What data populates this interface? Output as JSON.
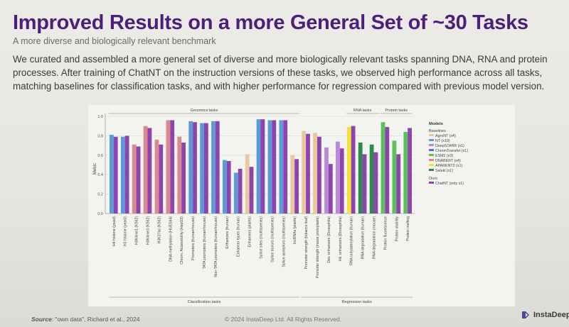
{
  "slide": {
    "title": "Improved Results on a more General Set of ~30 Tasks",
    "subtitle": "A more diverse and biologically relevant benchmark",
    "paragraph": "We curated and assembled a more general set of diverse and more biologically relevant tasks spanning DNA, RNA and protein processes. After training of ChatNT on the instruction versions of these tasks, we observed high performance across all tasks, matching baselines for classification tasks, and with higher performance for regression compared with previous model version.",
    "source_label": "Source",
    "source_text": ": \"own data\", Richard et al., 2024",
    "copyright": "© 2024 InstaDeep Ltd. All Rights Reserved.",
    "logo": "InstaDeep™"
  },
  "colors": {
    "title": "#4b1f7a",
    "AgroNT (x4)": "#e8c99b",
    "NT (x10)": "#5b9bd5",
    "DeepSTARR (x1)": "#b98bd6",
    "ChromTransfer (x1)": "#5c6bd8",
    "ESM2 (x3)": "#5cc15c",
    "DNABERT (x4)": "#d98a8a",
    "APARENT2 (x1)": "#f2e33b",
    "Saluki (x1)": "#2f8a4f",
    "ChatNT (only x1)": "#8e44ad"
  },
  "chart_data": {
    "type": "bar",
    "ylabel": "Metric",
    "ylim": [
      0,
      1.0
    ],
    "yticks": [
      "0.0",
      "0.2",
      "0.4",
      "0.6",
      "0.8",
      "1.0"
    ],
    "group_labels": {
      "top": [
        "Genomics tasks",
        "RNA tasks",
        "Protein tasks"
      ],
      "bottom": [
        "Classification tasks",
        "Regression tasks"
      ]
    },
    "legend": {
      "title": "Models",
      "baselines_label": "Baselines",
      "baselines": [
        "AgroNT (x4)",
        "NT (x10)",
        "DeepSTARR (x1)",
        "ChromTransfer (x1)",
        "ESM2 (x3)",
        "DNABERT (x4)",
        "APARENT2 (x1)",
        "Saluki (x1)"
      ],
      "ours_label": "Ours",
      "ours": [
        "ChatNT (only x1)"
      ],
      "placement": "right"
    },
    "tasks": [
      {
        "label": "H4 histone (yeast)",
        "baseline": "NT (x10)",
        "baseline_value": 0.81,
        "chatnt": 0.79
      },
      {
        "label": "H3 histone (yeast)",
        "baseline": "NT (x10)",
        "baseline_value": 0.79,
        "chatnt": 0.8
      },
      {
        "label": "H3K4me1 (K562)",
        "baseline": "DNABERT (x4)",
        "baseline_value": 0.71,
        "chatnt": 0.69
      },
      {
        "label": "H3K4me3 (K562)",
        "baseline": "DNABERT (x4)",
        "baseline_value": 0.9,
        "chatnt": 0.88
      },
      {
        "label": "H3K27ac (K562)",
        "baseline": "DNABERT (x4)",
        "baseline_value": 0.76,
        "chatnt": 0.71
      },
      {
        "label": "DNA methylation (HUES64)",
        "baseline": "DNABERT (x4)",
        "baseline_value": 0.96,
        "chatnt": 0.96
      },
      {
        "label": "Chrom. Accessibility (HepG2)",
        "baseline": "DNABERT (x4)",
        "baseline_value": 0.79,
        "chatnt": 0.73
      },
      {
        "label": "Promoters (human/mouse)",
        "baseline": "NT (x10)",
        "baseline_value": 0.95,
        "chatnt": 0.94
      },
      {
        "label": "TATA promoters (human/mouse)",
        "baseline": "NT (x10)",
        "baseline_value": 0.93,
        "chatnt": 0.93
      },
      {
        "label": "Non-TATA promoters (human/mouse)",
        "baseline": "NT (x10)",
        "baseline_value": 0.95,
        "chatnt": 0.95
      },
      {
        "label": "Enhancers (human)",
        "baseline": "NT (x10)",
        "baseline_value": 0.55,
        "chatnt": 0.54
      },
      {
        "label": "Enhancer types (human)",
        "baseline": "NT (x10)",
        "baseline_value": 0.42,
        "chatnt": 0.46
      },
      {
        "label": "Enhancers (plants)",
        "baseline": "AgroNT (x4)",
        "baseline_value": 0.61,
        "chatnt": 0.48
      },
      {
        "label": "Splice sites (multispecies)",
        "baseline": "NT (x10)",
        "baseline_value": 0.97,
        "chatnt": 0.97
      },
      {
        "label": "Splice donors (multispecies)",
        "baseline": "NT (x10)",
        "baseline_value": 0.96,
        "chatnt": 0.96
      },
      {
        "label": "Splice acceptors (multispecies)",
        "baseline": "NT (x10)",
        "baseline_value": 0.96,
        "chatnt": 0.96
      },
      {
        "label": "lncRNAs (plants)",
        "baseline": "AgroNT (x4)",
        "baseline_value": 0.6,
        "chatnt": 0.56
      },
      {
        "label": "Promoter strength (tobacco leaf)",
        "baseline": "AgroNT (x4)",
        "baseline_value": 0.85,
        "chatnt": 0.82
      },
      {
        "label": "Promoter strength (maize protoplasts)",
        "baseline": "AgroNT (x4)",
        "baseline_value": 0.83,
        "chatnt": 0.79
      },
      {
        "label": "Dev. enhancers (Drosophila)",
        "baseline": "DeepSTARR (x1)",
        "baseline_value": 0.68,
        "chatnt": 0.51
      },
      {
        "label": "Hk. enhancers (Drosophila)",
        "baseline": "DeepSTARR (x1)",
        "baseline_value": 0.74,
        "chatnt": 0.67
      },
      {
        "label": "RNA polyadenylation (human)",
        "baseline": "APARENT2 (x1)",
        "baseline_value": 0.89,
        "chatnt": 0.9
      },
      {
        "label": "RNA degradation (human)",
        "baseline": "Saluki (x1)",
        "baseline_value": 0.73,
        "chatnt": 0.61
      },
      {
        "label": "RNA degradation (mouse)",
        "baseline": "Saluki (x1)",
        "baseline_value": 0.71,
        "chatnt": 0.63
      },
      {
        "label": "Protein fluorescence",
        "baseline": "ESM2 (x3)",
        "baseline_value": 0.94,
        "chatnt": 0.89
      },
      {
        "label": "Protein stability",
        "baseline": "ESM2 (x3)",
        "baseline_value": 0.75,
        "chatnt": 0.61
      },
      {
        "label": "Protein melting",
        "baseline": "ESM2 (x3)",
        "baseline_value": 0.84,
        "chatnt": 0.88
      }
    ]
  }
}
